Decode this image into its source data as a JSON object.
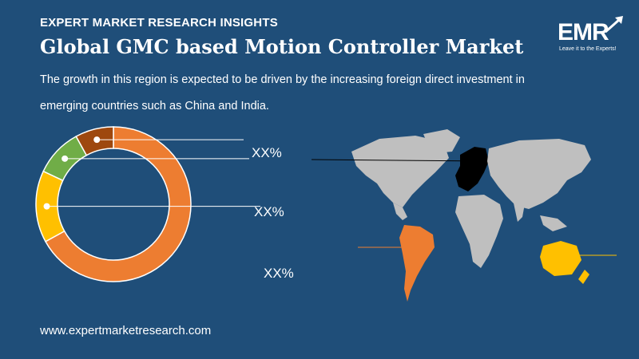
{
  "header": {
    "kicker": "EXPERT MARKET RESEARCH INSIGHTS",
    "title": "Global GMC based Motion Controller Market",
    "subtitle": "The growth in this region is expected to be driven by the increasing foreign direct investment in emerging countries such as China and India."
  },
  "logo": {
    "text": "EMR",
    "tagline": "Leave it to the Experts!"
  },
  "footer": {
    "url": "www.expertmarketresearch.com"
  },
  "colors": {
    "background": "#1f4e79",
    "orange": "#ed7d31",
    "yellow": "#ffc000",
    "green": "#70ad47",
    "brown": "#9e480e",
    "map_gray": "#bfbfbf",
    "europe": "#000000"
  },
  "chart_data": {
    "type": "pie",
    "donut": true,
    "slices": [
      {
        "color": "#ed7d31",
        "value": 67
      },
      {
        "color": "#ffc000",
        "value": 15
      },
      {
        "color": "#70ad47",
        "value": 10
      },
      {
        "color": "#9e480e",
        "value": 8
      }
    ],
    "annotations": [
      "XX%",
      "XX%",
      "XX%"
    ]
  }
}
